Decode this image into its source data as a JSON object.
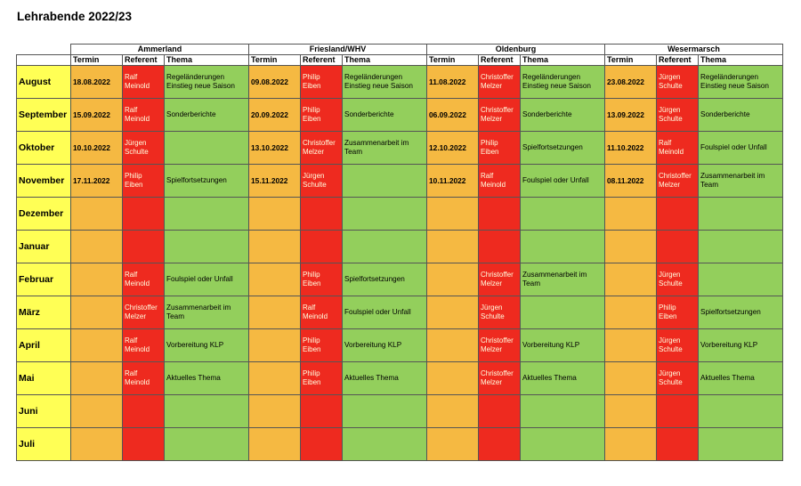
{
  "title": "Lehrabende 2022/23",
  "regions": [
    "Ammerland",
    "Friesland/WHV",
    "Oldenburg",
    "Wesermarsch"
  ],
  "column_headers": [
    "Termin",
    "Referent",
    "Thema"
  ],
  "colors": {
    "month": "#ffff55",
    "termin": "#f5b942",
    "referent": "#ee2a1f",
    "thema": "#93cf5c"
  },
  "rows": [
    {
      "month": "August",
      "cells": [
        {
          "termin": "18.08.2022",
          "referent": "Ralf Meinold",
          "thema": "Regeländerungen Einstieg neue Saison"
        },
        {
          "termin": "09.08.2022",
          "referent": "Philip Eiben",
          "thema": "Regeländerungen Einstieg neue Saison"
        },
        {
          "termin": "11.08.2022",
          "referent": "Christoffer Melzer",
          "thema": "Regeländerungen Einstieg neue Saison"
        },
        {
          "termin": "23.08.2022",
          "referent": "Jürgen Schulte",
          "thema": "Regeländerungen Einstieg neue Saison"
        }
      ]
    },
    {
      "month": "September",
      "cells": [
        {
          "termin": "15.09.2022",
          "referent": "Ralf Meinold",
          "thema": "Sonderberichte"
        },
        {
          "termin": "20.09.2022",
          "referent": "Philip Eiben",
          "thema": "Sonderberichte"
        },
        {
          "termin": "06.09.2022",
          "referent": "Christoffer Melzer",
          "thema": "Sonderberichte"
        },
        {
          "termin": "13.09.2022",
          "referent": "Jürgen Schulte",
          "thema": "Sonderberichte"
        }
      ]
    },
    {
      "month": "Oktober",
      "cells": [
        {
          "termin": "10.10.2022",
          "referent": "Jürgen Schulte",
          "thema": ""
        },
        {
          "termin": "13.10.2022",
          "referent": "Christoffer Melzer",
          "thema": "Zusammenarbeit im Team"
        },
        {
          "termin": "12.10.2022",
          "referent": "Philip Eiben",
          "thema": "Spielfortsetzungen"
        },
        {
          "termin": "11.10.2022",
          "referent": "Ralf Meinold",
          "thema": "Foulspiel oder Unfall"
        }
      ]
    },
    {
      "month": "November",
      "cells": [
        {
          "termin": "17.11.2022",
          "referent": "Philip Eiben",
          "thema": "Spielfortsetzungen"
        },
        {
          "termin": "15.11.2022",
          "referent": "Jürgen Schulte",
          "thema": ""
        },
        {
          "termin": "10.11.2022",
          "referent": "Ralf Meinold",
          "thema": "Foulspiel oder Unfall"
        },
        {
          "termin": "08.11.2022",
          "referent": "Christoffer Melzer",
          "thema": "Zusammenarbeit im Team"
        }
      ]
    },
    {
      "month": "Dezember",
      "cells": [
        {
          "termin": "",
          "referent": "",
          "thema": ""
        },
        {
          "termin": "",
          "referent": "",
          "thema": ""
        },
        {
          "termin": "",
          "referent": "",
          "thema": ""
        },
        {
          "termin": "",
          "referent": "",
          "thema": ""
        }
      ]
    },
    {
      "month": "Januar",
      "cells": [
        {
          "termin": "",
          "referent": "",
          "thema": ""
        },
        {
          "termin": "",
          "referent": "",
          "thema": ""
        },
        {
          "termin": "",
          "referent": "",
          "thema": ""
        },
        {
          "termin": "",
          "referent": "",
          "thema": ""
        }
      ]
    },
    {
      "month": "Februar",
      "cells": [
        {
          "termin": "",
          "referent": "Ralf Meinold",
          "thema": "Foulspiel oder Unfall"
        },
        {
          "termin": "",
          "referent": "Philip Eiben",
          "thema": "Spielfortsetzungen"
        },
        {
          "termin": "",
          "referent": "Christoffer Melzer",
          "thema": "Zusammenarbeit im Team"
        },
        {
          "termin": "",
          "referent": "Jürgen Schulte",
          "thema": ""
        }
      ]
    },
    {
      "month": "März",
      "cells": [
        {
          "termin": "",
          "referent": "Christoffer Melzer",
          "thema": "Zusammenarbeit im Team"
        },
        {
          "termin": "",
          "referent": "Ralf Meinold",
          "thema": "Foulspiel oder Unfall"
        },
        {
          "termin": "",
          "referent": "Jürgen Schulte",
          "thema": ""
        },
        {
          "termin": "",
          "referent": "Philip Eiben",
          "thema": "Spielfortsetzungen"
        }
      ]
    },
    {
      "month": "April",
      "cells": [
        {
          "termin": "",
          "referent": "Ralf Meinold",
          "thema": "Vorbereitung KLP"
        },
        {
          "termin": "",
          "referent": "Philip Eiben",
          "thema": "Vorbereitung KLP"
        },
        {
          "termin": "",
          "referent": "Christoffer Melzer",
          "thema": "Vorbereitung KLP"
        },
        {
          "termin": "",
          "referent": "Jürgen Schulte",
          "thema": "Vorbereitung KLP"
        }
      ]
    },
    {
      "month": "Mai",
      "cells": [
        {
          "termin": "",
          "referent": "Ralf Meinold",
          "thema": "Aktuelles Thema"
        },
        {
          "termin": "",
          "referent": "Philip Eiben",
          "thema": "Aktuelles Thema"
        },
        {
          "termin": "",
          "referent": "Christoffer Melzer",
          "thema": "Aktuelles Thema"
        },
        {
          "termin": "",
          "referent": "Jürgen Schulte",
          "thema": "Aktuelles Thema"
        }
      ]
    },
    {
      "month": "Juni",
      "cells": [
        {
          "termin": "",
          "referent": "",
          "thema": ""
        },
        {
          "termin": "",
          "referent": "",
          "thema": ""
        },
        {
          "termin": "",
          "referent": "",
          "thema": ""
        },
        {
          "termin": "",
          "referent": "",
          "thema": ""
        }
      ]
    },
    {
      "month": "Juli",
      "cells": [
        {
          "termin": "",
          "referent": "",
          "thema": ""
        },
        {
          "termin": "",
          "referent": "",
          "thema": ""
        },
        {
          "termin": "",
          "referent": "",
          "thema": ""
        },
        {
          "termin": "",
          "referent": "",
          "thema": ""
        }
      ]
    }
  ]
}
